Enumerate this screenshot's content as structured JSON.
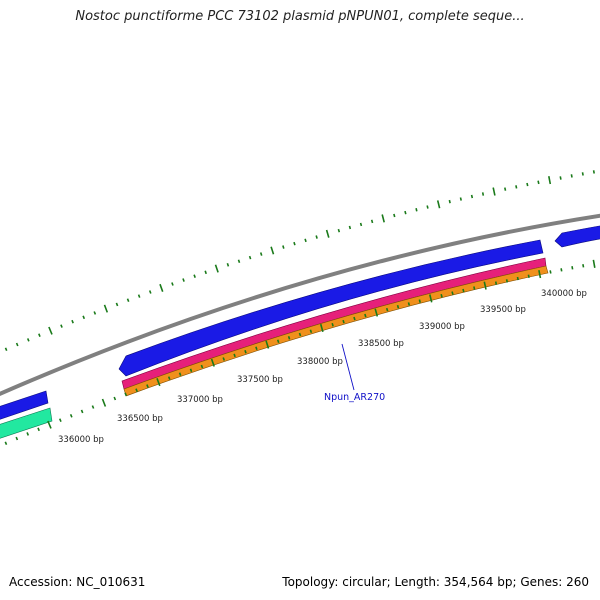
{
  "title": "Nostoc punctiforme PCC 73102 plasmid pNPUN01, complete seque...",
  "footer": {
    "accession": "Accession: NC_010631",
    "summary": "Topology: circular; Length: 354,564 bp; Genes: 260"
  },
  "scale_labels": [
    "336000 bp",
    "336500 bp",
    "337000 bp",
    "337500 bp",
    "338000 bp",
    "338500 bp",
    "339000 bp",
    "339500 bp",
    "340000 bp"
  ],
  "feature_label": "Npun_AR270",
  "colors": {
    "backbone": "#808080",
    "cds_blue": "#1a1ae6",
    "gene_green": "#22e8a0",
    "magenta": "#e6207a",
    "orange": "#f0901c",
    "tick_green": "#1a7a1a",
    "label_blue": "#1010c8"
  }
}
